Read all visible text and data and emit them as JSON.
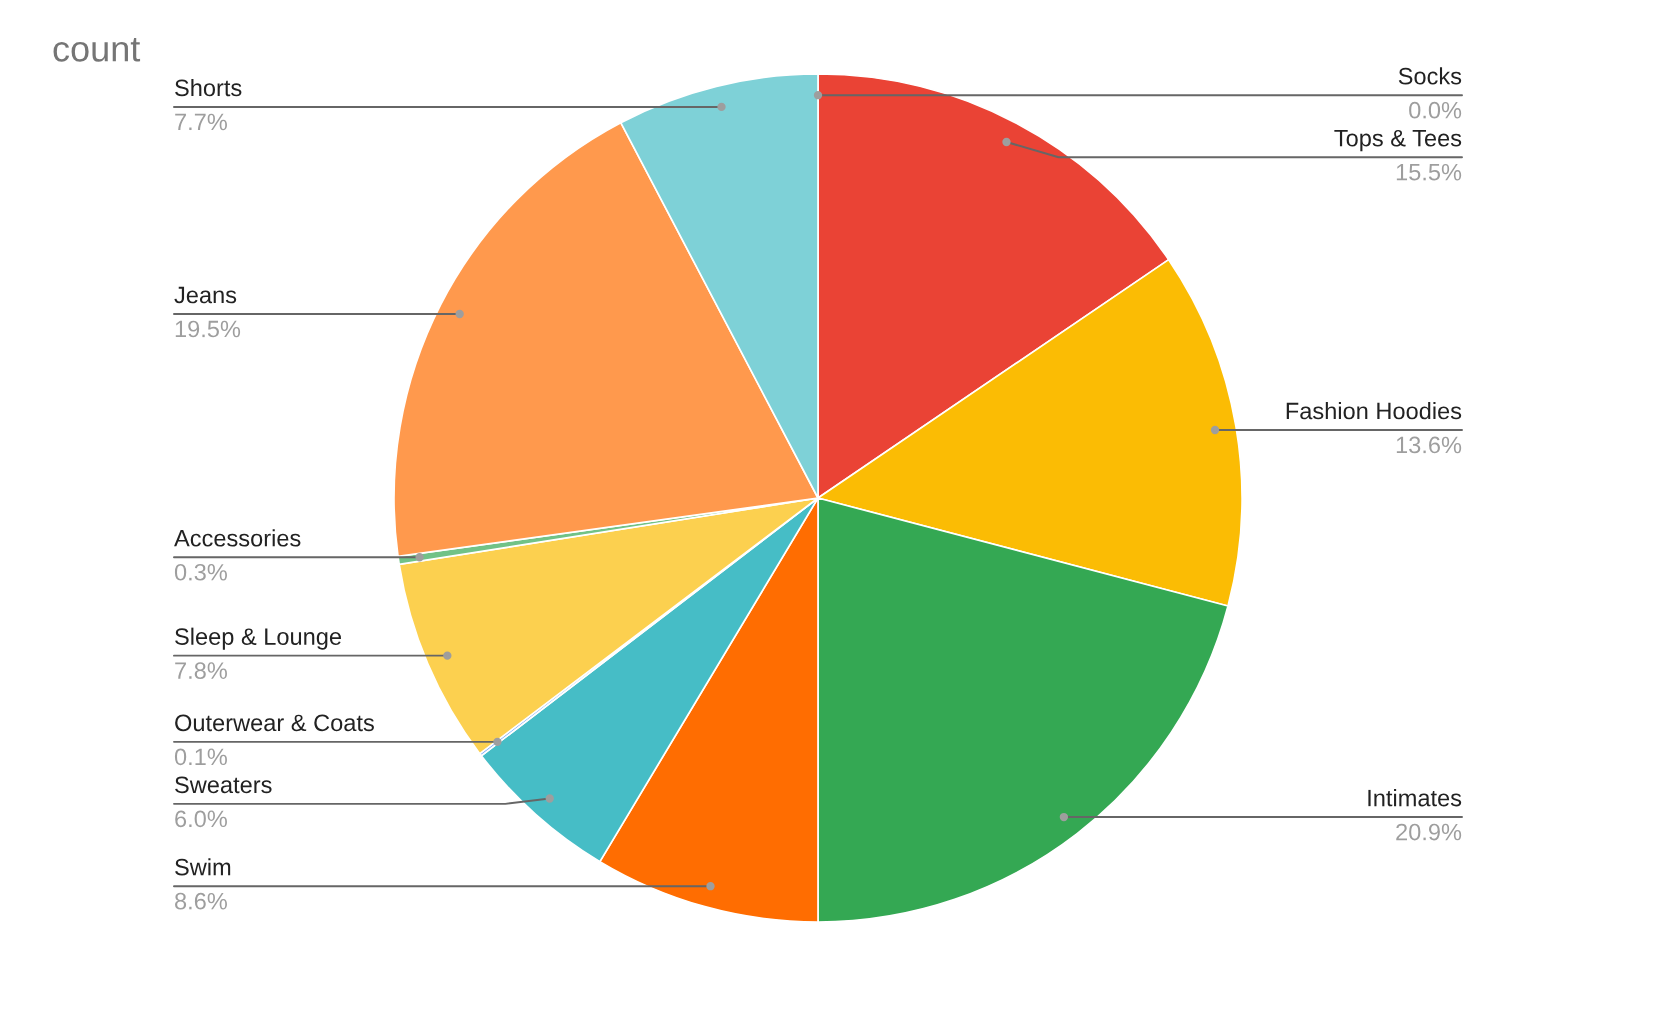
{
  "chart_data": {
    "type": "pie",
    "title": "count",
    "categories": [
      "Socks",
      "Tops & Tees",
      "Fashion Hoodies",
      "Intimates",
      "Swim",
      "Sweaters",
      "Outerwear & Coats",
      "Sleep & Lounge",
      "Accessories",
      "Jeans",
      "Shorts"
    ],
    "values": [
      0.0,
      15.5,
      13.6,
      20.9,
      8.6,
      6.0,
      0.1,
      7.8,
      0.3,
      19.5,
      7.7
    ],
    "value_labels": [
      "0.0%",
      "15.5%",
      "13.6%",
      "20.9%",
      "8.6%",
      "6.0%",
      "0.1%",
      "7.8%",
      "0.3%",
      "19.5%",
      "7.7%"
    ],
    "colors": [
      "#4285f4",
      "#ea4335",
      "#fbbc04",
      "#34a853",
      "#ff6d01",
      "#46bdc6",
      "#7baaf7",
      "#fcd04f",
      "#71c287",
      "#ff994d",
      "#7ed1d7"
    ],
    "legend": false
  }
}
